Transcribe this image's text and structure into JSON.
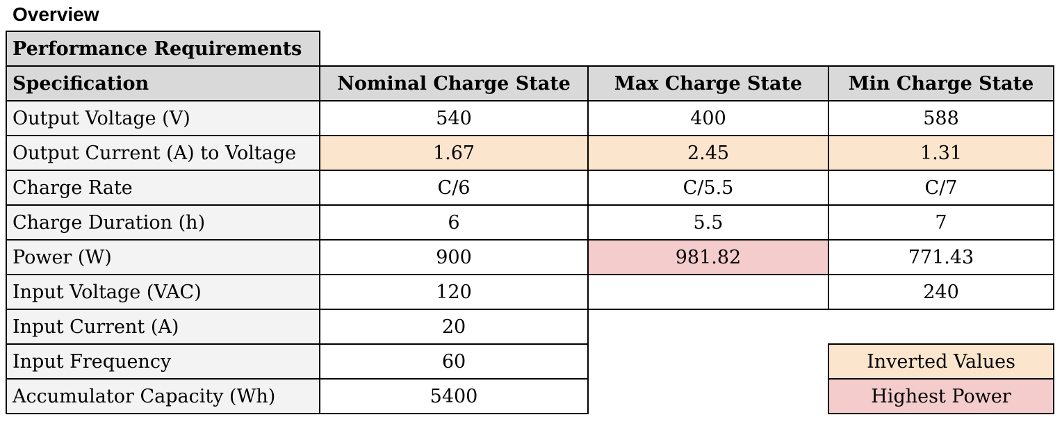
{
  "heading": "Overview",
  "table": {
    "title": "Performance Requirements",
    "headers": [
      "Specification",
      "Nominal Charge State",
      "Max Charge State",
      "Min Charge State"
    ],
    "rows": [
      {
        "label": "Output Voltage (V)",
        "values": [
          "540",
          "400",
          "588"
        ],
        "highlight": "none"
      },
      {
        "label": "Output Current (A) to Voltage",
        "values": [
          "1.67",
          "2.45",
          "1.31"
        ],
        "highlight": "inverted"
      },
      {
        "label": "Charge Rate",
        "values": [
          "C/6",
          "C/5.5",
          "C/7"
        ],
        "highlight": "none"
      },
      {
        "label": "Charge Duration (h)",
        "values": [
          "6",
          "5.5",
          "7"
        ],
        "highlight": "none"
      },
      {
        "label": "Power (W)",
        "values": [
          "900",
          "981.82",
          "771.43"
        ],
        "highlight": "highest-max"
      },
      {
        "label": "Input Voltage (VAC)",
        "values": [
          "120",
          "",
          "240"
        ],
        "highlight": "none"
      },
      {
        "label": "Input Current (A)",
        "values": [
          "20"
        ],
        "highlight": "none"
      },
      {
        "label": "Input Frequency",
        "values": [
          "60"
        ],
        "highlight": "none"
      },
      {
        "label": "Accumulator Capacity (Wh)",
        "values": [
          "5400"
        ],
        "highlight": "none"
      }
    ]
  },
  "legend": [
    {
      "label": "Inverted Values",
      "color": "#fce5cd"
    },
    {
      "label": "Highest Power",
      "color": "#f4cccc"
    }
  ],
  "colors": {
    "header_fill": "#d9d9d9",
    "label_fill": "#f3f3f3",
    "inverted_fill": "#fce5cd",
    "highest_power_fill": "#f4cccc"
  }
}
